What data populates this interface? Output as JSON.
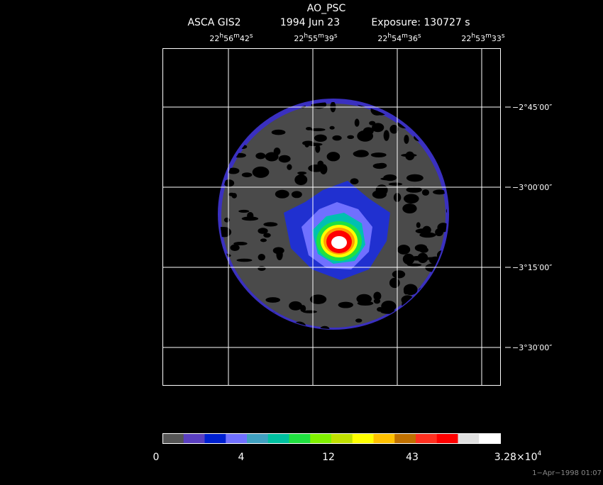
{
  "header": {
    "title": "AO_PSC",
    "instrument": "ASCA GIS2",
    "date": "1994 Jun 23",
    "exposure": "Exposure: 130727 s"
  },
  "ra_labels": [
    [
      "22",
      "h",
      "56",
      "m",
      "42",
      "s"
    ],
    [
      "22",
      "h",
      "55",
      "m",
      "39",
      "s"
    ],
    [
      "22",
      "h",
      "54",
      "m",
      "36",
      "s"
    ],
    [
      "22",
      "h",
      "53",
      "m",
      "33",
      "s"
    ]
  ],
  "dec_labels": [
    "−2°45′00″",
    "−3°00′00″",
    "−3°15′00″",
    "−3°30′00″"
  ],
  "colorbar_labels": [
    "0",
    "4",
    "12",
    "43",
    [
      "3.28×10",
      "4"
    ]
  ],
  "timestamp": "1−Apr−1998 01:07"
}
